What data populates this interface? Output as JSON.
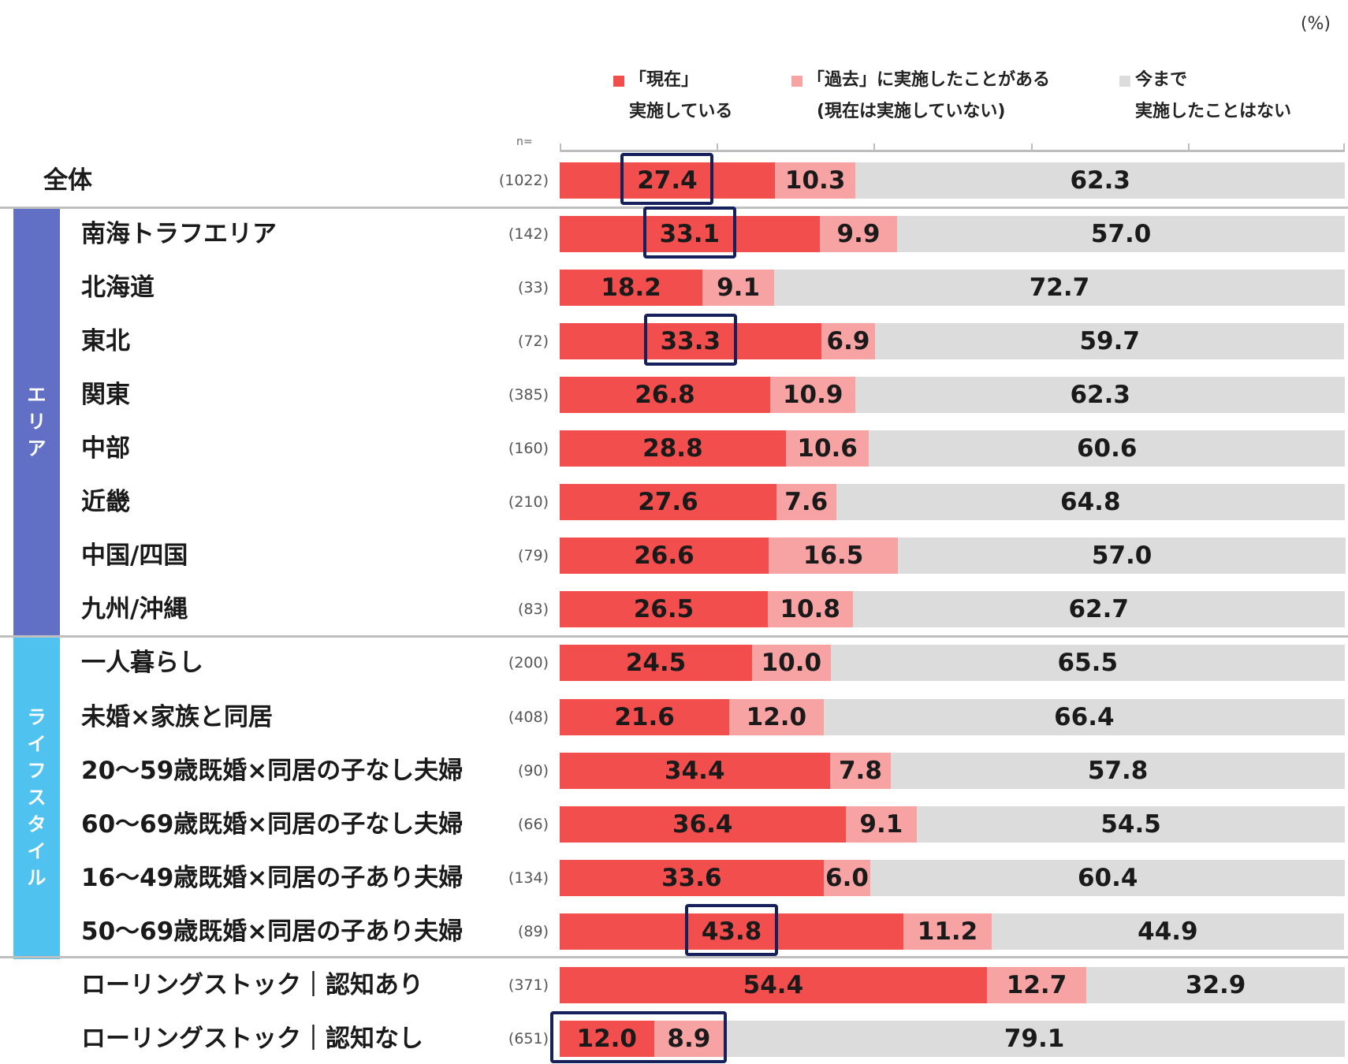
{
  "chart_data": {
    "type": "bar",
    "orientation": "horizontal",
    "stacked": true,
    "unit": "(%)",
    "n_prefix": "n=",
    "xlim": [
      0,
      100
    ],
    "grid": false,
    "legend_position": "top",
    "series": [
      {
        "name_line1": "「現在」",
        "name_line2": "実施している",
        "color": "#f24e4e"
      },
      {
        "name_line1": "「過去」に実施したことがある",
        "name_line2": "(現在は実施していない)",
        "color": "#f7a3a3"
      },
      {
        "name_line1": "今まで",
        "name_line2": "実施したことはない",
        "color": "#dcdcdc"
      }
    ],
    "groups": [
      {
        "label": "エリア",
        "color": "#6170c4",
        "first_row": 1,
        "last_row": 8
      },
      {
        "label": "ライフスタイル",
        "color": "#4fc2f0",
        "first_row": 9,
        "last_row": 14
      }
    ],
    "rows": [
      {
        "label": "全体",
        "n": "(1022)",
        "values": [
          "27.4",
          "10.3",
          "62.3"
        ],
        "highlight": true
      },
      {
        "label": "南海トラフエリア",
        "n": "(142)",
        "values": [
          "33.1",
          "9.9",
          "57.0"
        ],
        "highlight": true
      },
      {
        "label": "北海道",
        "n": "(33)",
        "values": [
          "18.2",
          "9.1",
          "72.7"
        ],
        "highlight": false
      },
      {
        "label": "東北",
        "n": "(72)",
        "values": [
          "33.3",
          "6.9",
          "59.7"
        ],
        "highlight": true
      },
      {
        "label": "関東",
        "n": "(385)",
        "values": [
          "26.8",
          "10.9",
          "62.3"
        ],
        "highlight": false
      },
      {
        "label": "中部",
        "n": "(160)",
        "values": [
          "28.8",
          "10.6",
          "60.6"
        ],
        "highlight": false
      },
      {
        "label": "近畿",
        "n": "(210)",
        "values": [
          "27.6",
          "7.6",
          "64.8"
        ],
        "highlight": false
      },
      {
        "label": "中国/四国",
        "n": "(79)",
        "values": [
          "26.6",
          "16.5",
          "57.0"
        ],
        "highlight": false
      },
      {
        "label": "九州/沖縄",
        "n": "(83)",
        "values": [
          "26.5",
          "10.8",
          "62.7"
        ],
        "highlight": false
      },
      {
        "label": "一人暮らし",
        "n": "(200)",
        "values": [
          "24.5",
          "10.0",
          "65.5"
        ],
        "highlight": false
      },
      {
        "label": "未婚×家族と同居",
        "n": "(408)",
        "values": [
          "21.6",
          "12.0",
          "66.4"
        ],
        "highlight": false
      },
      {
        "label": "20～59歳既婚×同居の子なし夫婦",
        "n": "(90)",
        "values": [
          "34.4",
          "7.8",
          "57.8"
        ],
        "highlight": false
      },
      {
        "label": "60～69歳既婚×同居の子なし夫婦",
        "n": "(66)",
        "values": [
          "36.4",
          "9.1",
          "54.5"
        ],
        "highlight": false
      },
      {
        "label": "16～49歳既婚×同居の子あり夫婦",
        "n": "(134)",
        "values": [
          "33.6",
          "6.0",
          "60.4"
        ],
        "highlight": false
      },
      {
        "label": "50～69歳既婚×同居の子あり夫婦",
        "n": "(89)",
        "values": [
          "43.8",
          "11.2",
          "44.9"
        ],
        "highlight": true
      },
      {
        "label": "ローリングストック｜認知あり",
        "n": "(371)",
        "values": [
          "54.4",
          "12.7",
          "32.9"
        ],
        "highlight": false
      },
      {
        "label": "ローリングストック｜認知なし",
        "n": "(651)",
        "values": [
          "12.0",
          "8.9",
          "79.1"
        ],
        "highlight": true,
        "highlight_all_segments": true
      }
    ]
  }
}
